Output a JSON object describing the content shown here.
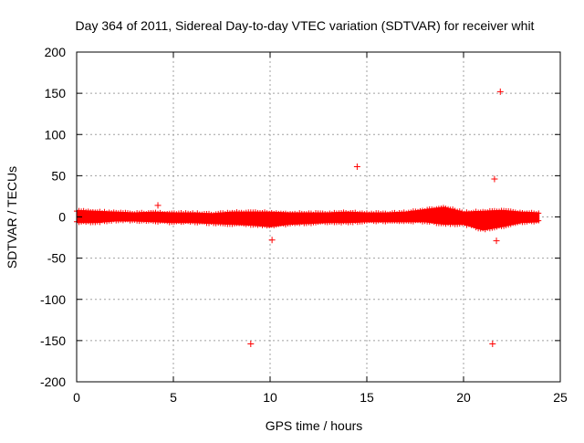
{
  "chart_data": {
    "type": "scatter",
    "title": "Day 364 of 2011, Sidereal Day-to-day VTEC variation (SDTVAR) for receiver whit",
    "xlabel": "GPS time / hours",
    "ylabel": "SDTVAR / TECUs",
    "xlim": [
      0,
      25
    ],
    "ylim": [
      -200,
      200
    ],
    "xticks": [
      0,
      5,
      10,
      15,
      20,
      25
    ],
    "yticks": [
      -200,
      -150,
      -100,
      -50,
      0,
      50,
      100,
      150,
      200
    ],
    "grid": true,
    "legend": "none",
    "marker": "+",
    "color": "#ff0000",
    "x_range_data": [
      0,
      23.9
    ],
    "band": {
      "x": [
        0,
        1,
        2,
        3,
        4,
        5,
        6,
        7,
        8,
        9,
        10,
        11,
        12,
        13,
        14,
        15,
        16,
        17,
        18,
        19,
        20,
        21,
        22,
        23,
        23.9
      ],
      "upper": [
        8,
        7,
        6,
        5,
        6,
        5,
        5,
        4,
        6,
        6,
        6,
        5,
        5,
        5,
        6,
        5,
        5,
        6,
        9,
        12,
        6,
        7,
        8,
        6,
        5
      ],
      "lower": [
        -7,
        -7,
        -5,
        -5,
        -6,
        -7,
        -7,
        -8,
        -9,
        -10,
        -12,
        -9,
        -8,
        -7,
        -7,
        -6,
        -6,
        -6,
        -6,
        -9,
        -9,
        -16,
        -12,
        -7,
        -6
      ]
    },
    "outliers": [
      {
        "x": 4.2,
        "y": 14
      },
      {
        "x": 9.0,
        "y": -154
      },
      {
        "x": 10.1,
        "y": -28
      },
      {
        "x": 14.5,
        "y": 61
      },
      {
        "x": 21.5,
        "y": -154
      },
      {
        "x": 21.6,
        "y": 46
      },
      {
        "x": 21.7,
        "y": -29
      },
      {
        "x": 21.9,
        "y": 152
      }
    ]
  }
}
